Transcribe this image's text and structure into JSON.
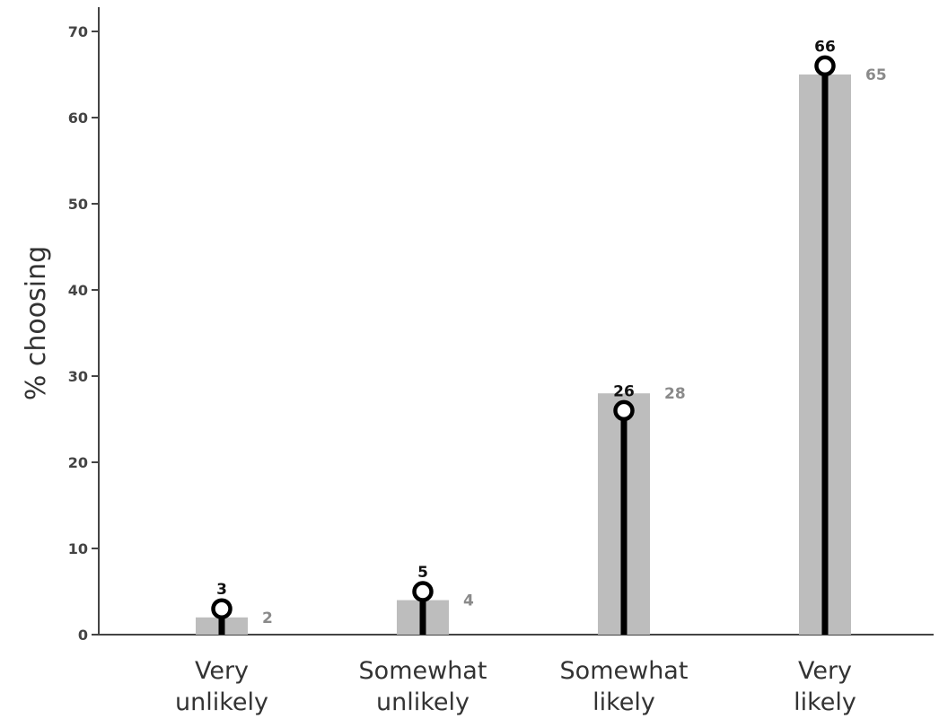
{
  "chart_data": {
    "type": "bar",
    "categories": [
      [
        "Very",
        "unlikely"
      ],
      [
        "Somewhat",
        "unlikely"
      ],
      [
        "Somewhat",
        "likely"
      ],
      [
        "Very",
        "likely"
      ]
    ],
    "ylabel": "% choosing",
    "ylim": [
      0,
      70
    ],
    "yticks": [
      0,
      10,
      20,
      30,
      40,
      50,
      60,
      70
    ],
    "grid": false,
    "series": [
      {
        "values": [
          2,
          4,
          28,
          65
        ],
        "color": "#bdbdbd",
        "style": "bar"
      },
      {
        "values": [
          3,
          5,
          26,
          66
        ],
        "color": "#000000",
        "style": "lollipop"
      }
    ]
  }
}
